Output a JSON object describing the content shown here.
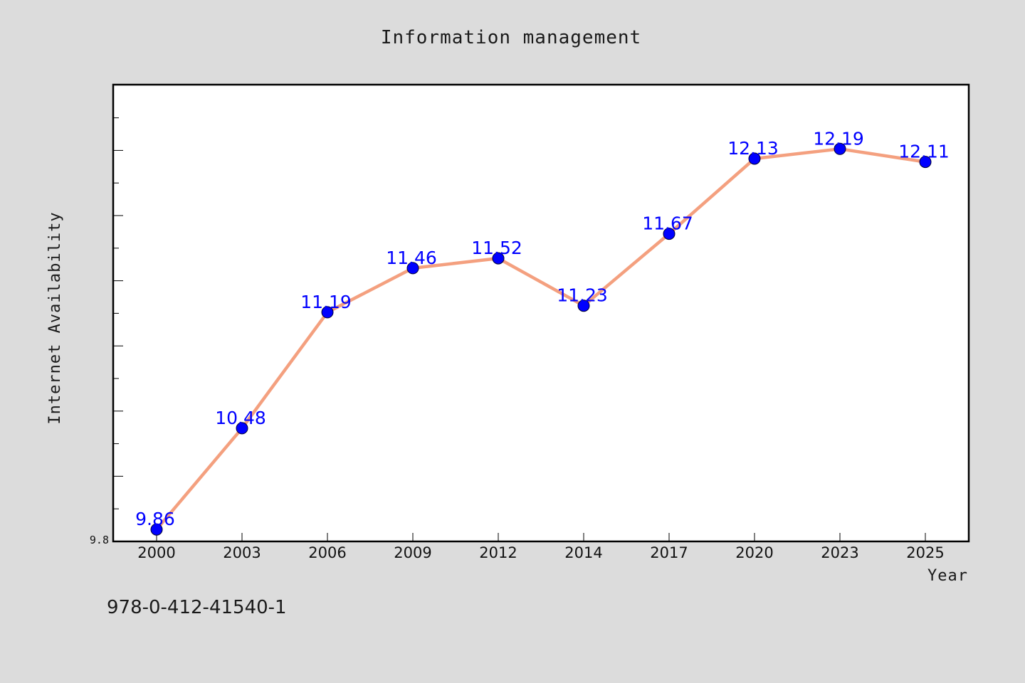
{
  "chart_data": {
    "type": "line",
    "title": "Information management",
    "xlabel": "Year",
    "ylabel": "Internet Availability",
    "categories": [
      "2000",
      "2003",
      "2006",
      "2009",
      "2012",
      "2014",
      "2017",
      "2020",
      "2023",
      "2025"
    ],
    "series": [
      {
        "values": [
          9.86,
          10.48,
          11.19,
          11.46,
          11.52,
          11.23,
          11.67,
          12.13,
          12.19,
          12.11
        ],
        "labels": [
          "9.86",
          "10.48",
          "11.19",
          "11.46",
          "11.52",
          "11.23",
          "11.67",
          "12.13",
          "12.19",
          "12.11"
        ],
        "line_color": "#f4a07f",
        "marker_color": "#0000ff"
      }
    ],
    "ylim": [
      9.8,
      12.6
    ],
    "y_tick_labels": [
      "9.8"
    ],
    "grid": false,
    "legend": false,
    "background_color": "#dcdcdc",
    "plot_background_color": "#ffffff"
  },
  "footer": {
    "isbn": "978-0-412-41540-1"
  }
}
